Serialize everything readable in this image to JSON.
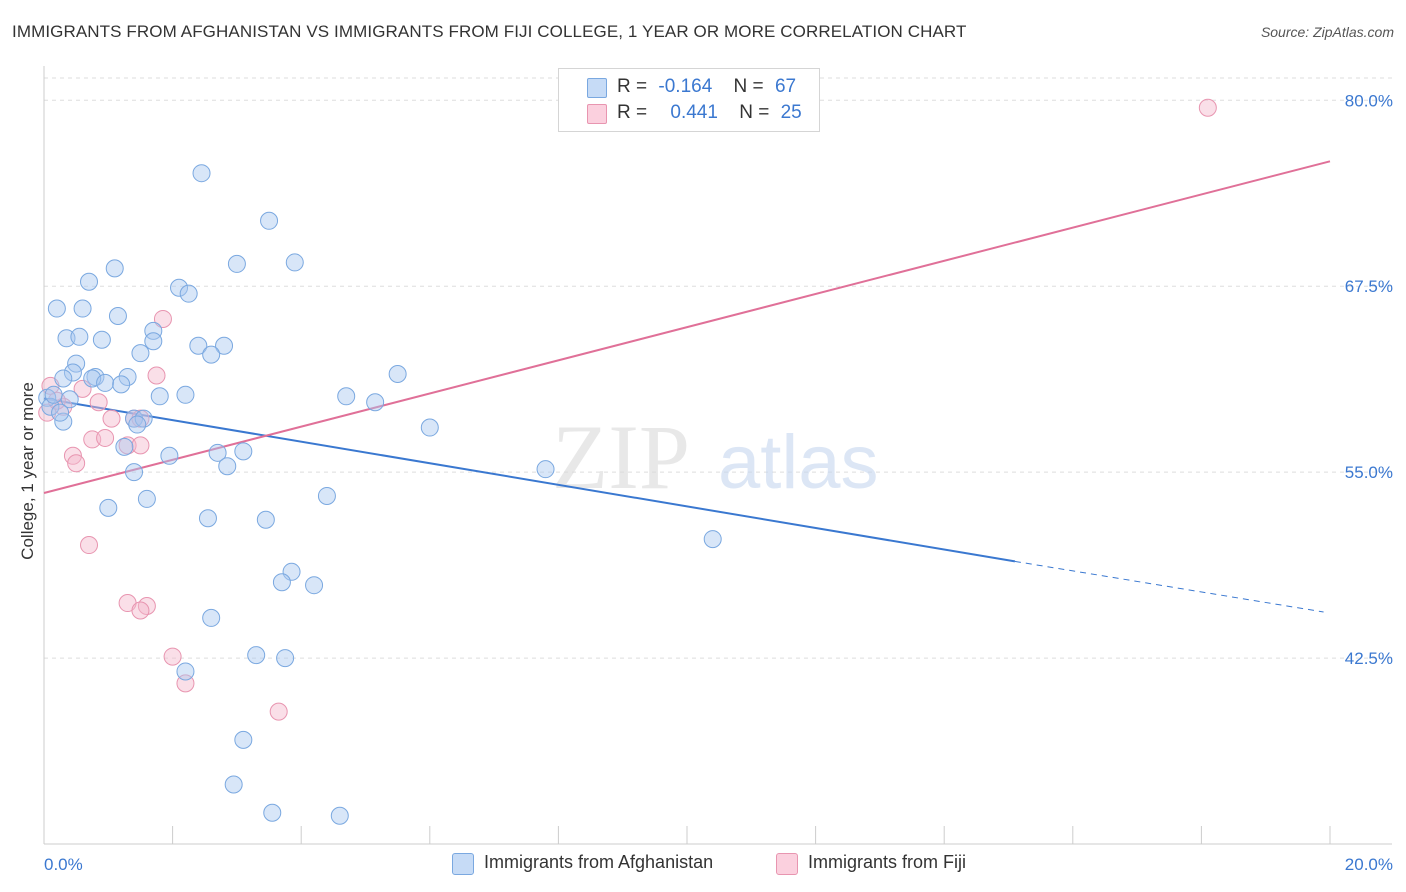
{
  "title": "IMMIGRANTS FROM AFGHANISTAN VS IMMIGRANTS FROM FIJI COLLEGE, 1 YEAR OR MORE CORRELATION CHART",
  "source": "Source: ZipAtlas.com",
  "watermark": {
    "zip": "ZIP",
    "atlas": "atlas"
  },
  "legend": {
    "r_label": "R =",
    "n_label": "N =",
    "afghanistan": {
      "r": "-0.164",
      "n": "67"
    },
    "fiji": {
      "r": "0.441",
      "n": "25"
    }
  },
  "colors": {
    "afghanistan_fill": "#a8c8f0",
    "afghanistan_stroke": "#7aa8e0",
    "afghanistan_line": "#3a78d0",
    "fiji_fill": "#f5b8cc",
    "fiji_stroke": "#e895b0",
    "fiji_line": "#e07098",
    "tick_label": "#3b78d0",
    "grid": "#dddddd"
  },
  "chart_data": {
    "type": "scatter",
    "title": "IMMIGRANTS FROM AFGHANISTAN VS IMMIGRANTS FROM FIJI COLLEGE, 1 YEAR OR MORE CORRELATION CHART",
    "xlabel": "",
    "ylabel": "College, 1 year or more",
    "xlim": [
      0,
      20
    ],
    "ylim": [
      30.0,
      81.5
    ],
    "x_tick_labels": [
      "0.0%",
      "20.0%"
    ],
    "y_ticks": [
      42.5,
      55.0,
      67.5,
      80.0
    ],
    "y_tick_labels": [
      "42.5%",
      "55.0%",
      "67.5%",
      "80.0%"
    ],
    "grid": true,
    "series": [
      {
        "name": "Immigrants from Afghanistan",
        "points": [
          [
            2.45,
            75.1
          ],
          [
            3.5,
            71.9
          ],
          [
            1.1,
            68.7
          ],
          [
            0.7,
            67.8
          ],
          [
            2.1,
            67.4
          ],
          [
            2.25,
            67.0
          ],
          [
            3.0,
            69.0
          ],
          [
            3.9,
            69.1
          ],
          [
            0.2,
            66.0
          ],
          [
            0.6,
            66.0
          ],
          [
            1.15,
            65.5
          ],
          [
            1.7,
            64.5
          ],
          [
            0.35,
            64.0
          ],
          [
            0.55,
            64.1
          ],
          [
            0.9,
            63.9
          ],
          [
            1.7,
            63.8
          ],
          [
            2.4,
            63.5
          ],
          [
            2.8,
            63.5
          ],
          [
            1.5,
            63.0
          ],
          [
            2.6,
            62.9
          ],
          [
            0.5,
            62.3
          ],
          [
            0.45,
            61.7
          ],
          [
            0.8,
            61.4
          ],
          [
            0.75,
            61.3
          ],
          [
            1.3,
            61.4
          ],
          [
            0.95,
            61.0
          ],
          [
            1.2,
            60.9
          ],
          [
            5.5,
            61.6
          ],
          [
            0.05,
            60.0
          ],
          [
            0.4,
            59.9
          ],
          [
            1.8,
            60.1
          ],
          [
            2.2,
            60.2
          ],
          [
            4.7,
            60.1
          ],
          [
            5.15,
            59.7
          ],
          [
            0.1,
            59.4
          ],
          [
            0.3,
            58.4
          ],
          [
            1.4,
            58.6
          ],
          [
            1.55,
            58.6
          ],
          [
            1.45,
            58.2
          ],
          [
            6.0,
            58.0
          ],
          [
            1.25,
            56.7
          ],
          [
            1.95,
            56.1
          ],
          [
            2.7,
            56.3
          ],
          [
            3.1,
            56.4
          ],
          [
            2.85,
            55.4
          ],
          [
            1.4,
            55.0
          ],
          [
            7.8,
            55.2
          ],
          [
            1.6,
            53.2
          ],
          [
            4.4,
            53.4
          ],
          [
            1.0,
            52.6
          ],
          [
            2.55,
            51.9
          ],
          [
            3.45,
            51.8
          ],
          [
            10.4,
            50.5
          ],
          [
            3.85,
            48.3
          ],
          [
            3.7,
            47.6
          ],
          [
            4.2,
            47.4
          ],
          [
            2.6,
            45.2
          ],
          [
            3.3,
            42.7
          ],
          [
            3.75,
            42.5
          ],
          [
            2.2,
            41.6
          ],
          [
            3.1,
            37.0
          ],
          [
            2.95,
            34.0
          ],
          [
            3.55,
            32.1
          ],
          [
            4.6,
            31.9
          ],
          [
            0.25,
            59.0
          ],
          [
            0.15,
            60.2
          ],
          [
            0.3,
            61.3
          ]
        ],
        "trend": {
          "x0": 0,
          "y0": 59.95,
          "x1": 15.1,
          "y1": 49.0,
          "dashed_to_x": 19.9,
          "dashed_to_y": 45.6
        }
      },
      {
        "name": "Immigrants from Fiji",
        "points": [
          [
            18.1,
            79.5
          ],
          [
            1.85,
            65.3
          ],
          [
            1.75,
            61.5
          ],
          [
            0.6,
            60.6
          ],
          [
            0.85,
            59.7
          ],
          [
            0.3,
            59.4
          ],
          [
            1.05,
            58.6
          ],
          [
            1.4,
            58.6
          ],
          [
            1.5,
            58.6
          ],
          [
            0.75,
            57.2
          ],
          [
            0.95,
            57.3
          ],
          [
            1.3,
            56.8
          ],
          [
            1.5,
            56.8
          ],
          [
            0.45,
            56.1
          ],
          [
            0.5,
            55.6
          ],
          [
            0.7,
            50.1
          ],
          [
            1.3,
            46.2
          ],
          [
            1.6,
            46.0
          ],
          [
            1.5,
            45.7
          ],
          [
            2.0,
            42.6
          ],
          [
            2.2,
            40.8
          ],
          [
            3.65,
            38.9
          ],
          [
            0.05,
            59.0
          ],
          [
            0.1,
            60.8
          ],
          [
            0.2,
            59.8
          ]
        ],
        "trend": {
          "x0": 0,
          "y0": 53.6,
          "x1": 20.0,
          "y1": 75.9
        }
      }
    ]
  },
  "bottom_legend": {
    "afghanistan": "Immigrants from Afghanistan",
    "fiji": "Immigrants from Fiji"
  }
}
